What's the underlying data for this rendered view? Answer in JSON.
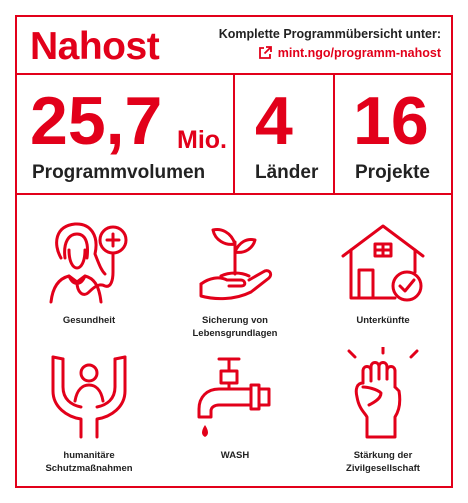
{
  "header": {
    "region": "Nahost",
    "overview_label": "Komplette Programmübersicht unter:",
    "overview_link": "mint.ngo/programm-nahost",
    "link_icon": "external-link-icon"
  },
  "stats": [
    {
      "value": "25,7",
      "unit": "Mio.",
      "label": "Programmvolumen"
    },
    {
      "value": "4",
      "label": "Länder"
    },
    {
      "value": "16",
      "label": "Projekte"
    }
  ],
  "sectors": [
    {
      "label_line1": "Gesundheit",
      "label_line2": "",
      "icon": "health-icon"
    },
    {
      "label_line1": "Sicherung von",
      "label_line2": "Lebensgrundlagen",
      "icon": "plant-in-hand-icon"
    },
    {
      "label_line1": "Unterkünfte",
      "label_line2": "",
      "icon": "house-icon"
    },
    {
      "label_line1": "humanitäre",
      "label_line2": "Schutzmaßnahmen",
      "icon": "protection-icon"
    },
    {
      "label_line1": "WASH",
      "label_line2": "",
      "icon": "water-tap-icon"
    },
    {
      "label_line1": "Stärkung der",
      "label_line2": "Zivilgesellschaft",
      "icon": "raised-fist-icon"
    }
  ],
  "colors": {
    "accent": "#e2001a",
    "text": "#222222"
  }
}
